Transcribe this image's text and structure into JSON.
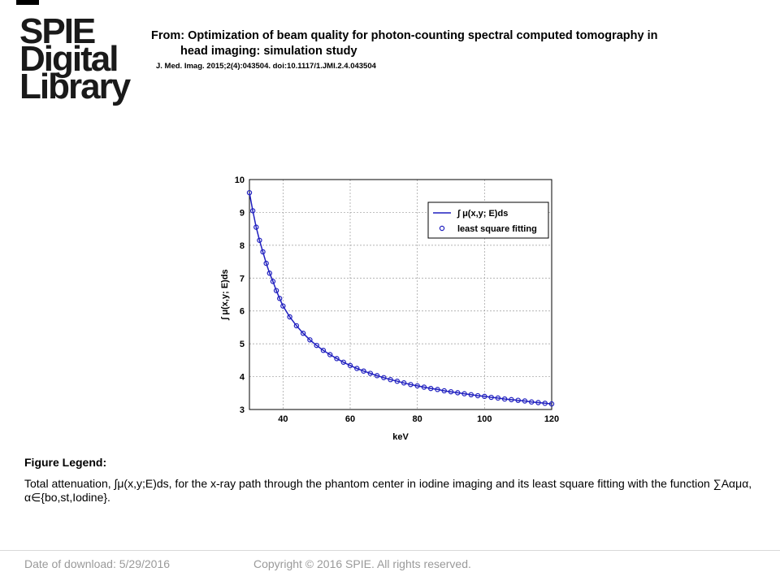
{
  "logo": {
    "line1": "SPIE",
    "line2": "Digital",
    "line3": "Library"
  },
  "header": {
    "from_line1": "From: Optimization of beam quality for photon-counting spectral computed tomography in",
    "from_line2": "head imaging: simulation study",
    "citation": "J. Med. Imag. 2015;2(4):043504. doi:10.1117/1.JMI.2.4.043504"
  },
  "chart_data": {
    "type": "line",
    "xlabel": "keV",
    "ylabel": "∫ μ(x,y; E)ds",
    "xlim": [
      30,
      120
    ],
    "ylim": [
      3,
      10
    ],
    "xticks": [
      "40",
      "60",
      "80",
      "100",
      "120"
    ],
    "yticks": [
      "3",
      "4",
      "5",
      "6",
      "7",
      "8",
      "9",
      "10"
    ],
    "grid": true,
    "legend": "top-right",
    "series": [
      {
        "name": "∫ μ(x,y; E)ds",
        "style": "line",
        "color": "#1f1fbf"
      },
      {
        "name": "least square fitting",
        "style": "markers",
        "color": "#1f1fbf"
      }
    ],
    "x": [
      30,
      31,
      32,
      33,
      34,
      35,
      36,
      37,
      38,
      39,
      40,
      42,
      44,
      46,
      48,
      50,
      52,
      54,
      56,
      58,
      60,
      62,
      64,
      66,
      68,
      70,
      72,
      74,
      76,
      78,
      80,
      82,
      84,
      86,
      88,
      90,
      92,
      94,
      96,
      98,
      100,
      102,
      104,
      106,
      108,
      110,
      112,
      114,
      116,
      118,
      120
    ],
    "y": [
      9.6,
      9.05,
      8.55,
      8.15,
      7.8,
      7.45,
      7.15,
      6.9,
      6.62,
      6.38,
      6.15,
      5.82,
      5.55,
      5.32,
      5.12,
      4.95,
      4.8,
      4.67,
      4.55,
      4.44,
      4.34,
      4.25,
      4.17,
      4.1,
      4.03,
      3.97,
      3.91,
      3.86,
      3.81,
      3.76,
      3.72,
      3.68,
      3.64,
      3.61,
      3.57,
      3.54,
      3.51,
      3.48,
      3.45,
      3.42,
      3.4,
      3.37,
      3.35,
      3.32,
      3.3,
      3.28,
      3.26,
      3.23,
      3.21,
      3.19,
      3.17
    ]
  },
  "legend_section": {
    "title": "Figure Legend:",
    "caption": "Total attenuation, ∫μ(x,y;E)ds, for the x-ray path through the phantom center in iodine imaging and its least square fitting with the function ∑Aαμα, α∈{bo,st,Iodine}."
  },
  "footer": {
    "date": "Date of download:  5/29/2016",
    "copyright": "Copyright © 2016 SPIE. All rights reserved."
  }
}
